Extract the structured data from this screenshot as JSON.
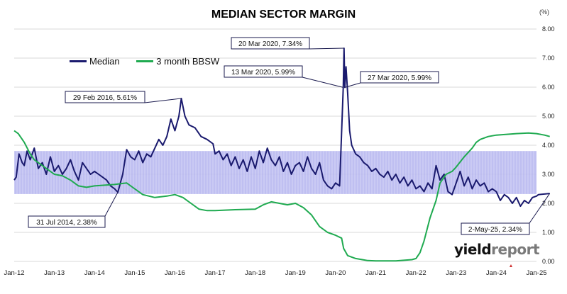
{
  "title": "MEDIAN SECTOR MARGIN",
  "unit_label": "(%)",
  "brand": {
    "part1": "yield",
    "part2": "report"
  },
  "legend": [
    {
      "name": "Median",
      "color": "#1a1a6e"
    },
    {
      "name": "3 month BBSW",
      "color": "#1faa50"
    }
  ],
  "chart_data": {
    "type": "line",
    "title": "MEDIAN SECTOR MARGIN",
    "ylabel": "(%)",
    "xlim": [
      "Jan-12",
      "Jan-25"
    ],
    "ylim": [
      0,
      8
    ],
    "x_ticks": [
      "Jan-12",
      "Jan-13",
      "Jan-14",
      "Jan-15",
      "Jan-16",
      "Jan-17",
      "Jan-18",
      "Jan-19",
      "Jan-20",
      "Jan-21",
      "Jan-22",
      "Jan-23",
      "Jan-24",
      "Jan-25"
    ],
    "y_ticks": [
      "0.00",
      "1.00",
      "2.00",
      "3.00",
      "4.00",
      "5.00",
      "6.00",
      "7.00",
      "8.00"
    ],
    "grid": true,
    "legend_position": "top-left",
    "shaded_band": {
      "y_range": [
        2.32,
        3.8
      ],
      "color": "#b8b8f0"
    },
    "series": [
      {
        "name": "Median",
        "color": "#1a1a6e",
        "points": [
          [
            2012.0,
            2.8
          ],
          [
            2012.05,
            2.9
          ],
          [
            2012.12,
            3.7
          ],
          [
            2012.2,
            3.4
          ],
          [
            2012.25,
            3.3
          ],
          [
            2012.32,
            3.8
          ],
          [
            2012.4,
            3.5
          ],
          [
            2012.5,
            3.9
          ],
          [
            2012.6,
            3.2
          ],
          [
            2012.7,
            3.4
          ],
          [
            2012.8,
            3.0
          ],
          [
            2012.9,
            3.6
          ],
          [
            2013.0,
            3.1
          ],
          [
            2013.1,
            3.3
          ],
          [
            2013.2,
            3.0
          ],
          [
            2013.3,
            3.2
          ],
          [
            2013.4,
            3.5
          ],
          [
            2013.5,
            3.1
          ],
          [
            2013.6,
            2.8
          ],
          [
            2013.7,
            3.4
          ],
          [
            2013.8,
            3.2
          ],
          [
            2013.9,
            3.0
          ],
          [
            2014.0,
            3.1
          ],
          [
            2014.1,
            3.0
          ],
          [
            2014.2,
            2.9
          ],
          [
            2014.3,
            2.8
          ],
          [
            2014.4,
            2.6
          ],
          [
            2014.5,
            2.5
          ],
          [
            2014.58,
            2.38
          ],
          [
            2014.7,
            3.0
          ],
          [
            2014.8,
            3.85
          ],
          [
            2014.9,
            3.6
          ],
          [
            2015.0,
            3.5
          ],
          [
            2015.1,
            3.8
          ],
          [
            2015.2,
            3.4
          ],
          [
            2015.3,
            3.7
          ],
          [
            2015.4,
            3.6
          ],
          [
            2015.5,
            3.9
          ],
          [
            2015.6,
            4.2
          ],
          [
            2015.7,
            4.0
          ],
          [
            2015.8,
            4.3
          ],
          [
            2015.9,
            4.9
          ],
          [
            2016.0,
            4.5
          ],
          [
            2016.1,
            5.0
          ],
          [
            2016.16,
            5.61
          ],
          [
            2016.25,
            5.0
          ],
          [
            2016.35,
            4.7
          ],
          [
            2016.5,
            4.6
          ],
          [
            2016.65,
            4.3
          ],
          [
            2016.8,
            4.2
          ],
          [
            2016.95,
            4.05
          ],
          [
            2017.0,
            3.7
          ],
          [
            2017.1,
            3.8
          ],
          [
            2017.2,
            3.5
          ],
          [
            2017.3,
            3.7
          ],
          [
            2017.4,
            3.3
          ],
          [
            2017.5,
            3.6
          ],
          [
            2017.6,
            3.2
          ],
          [
            2017.7,
            3.5
          ],
          [
            2017.8,
            3.1
          ],
          [
            2017.9,
            3.6
          ],
          [
            2018.0,
            3.2
          ],
          [
            2018.1,
            3.8
          ],
          [
            2018.2,
            3.4
          ],
          [
            2018.3,
            3.9
          ],
          [
            2018.4,
            3.5
          ],
          [
            2018.5,
            3.3
          ],
          [
            2018.6,
            3.6
          ],
          [
            2018.7,
            3.1
          ],
          [
            2018.8,
            3.4
          ],
          [
            2018.9,
            3.0
          ],
          [
            2019.0,
            3.3
          ],
          [
            2019.1,
            3.4
          ],
          [
            2019.2,
            3.1
          ],
          [
            2019.3,
            3.6
          ],
          [
            2019.4,
            3.2
          ],
          [
            2019.5,
            3.0
          ],
          [
            2019.6,
            3.4
          ],
          [
            2019.7,
            2.8
          ],
          [
            2019.8,
            2.6
          ],
          [
            2019.9,
            2.5
          ],
          [
            2020.0,
            2.7
          ],
          [
            2020.1,
            2.6
          ],
          [
            2020.19,
            5.99
          ],
          [
            2020.21,
            7.34
          ],
          [
            2020.23,
            5.99
          ],
          [
            2020.26,
            6.7
          ],
          [
            2020.3,
            5.8
          ],
          [
            2020.35,
            4.5
          ],
          [
            2020.4,
            4.0
          ],
          [
            2020.5,
            3.7
          ],
          [
            2020.6,
            3.6
          ],
          [
            2020.7,
            3.4
          ],
          [
            2020.8,
            3.3
          ],
          [
            2020.9,
            3.1
          ],
          [
            2021.0,
            3.2
          ],
          [
            2021.1,
            3.0
          ],
          [
            2021.2,
            2.9
          ],
          [
            2021.3,
            3.1
          ],
          [
            2021.4,
            2.8
          ],
          [
            2021.5,
            3.0
          ],
          [
            2021.6,
            2.7
          ],
          [
            2021.7,
            2.9
          ],
          [
            2021.8,
            2.6
          ],
          [
            2021.9,
            2.8
          ],
          [
            2022.0,
            2.5
          ],
          [
            2022.1,
            2.6
          ],
          [
            2022.2,
            2.4
          ],
          [
            2022.3,
            2.7
          ],
          [
            2022.4,
            2.5
          ],
          [
            2022.5,
            3.3
          ],
          [
            2022.6,
            2.8
          ],
          [
            2022.7,
            3.0
          ],
          [
            2022.8,
            2.4
          ],
          [
            2022.9,
            2.3
          ],
          [
            2023.0,
            2.7
          ],
          [
            2023.1,
            3.1
          ],
          [
            2023.2,
            2.6
          ],
          [
            2023.3,
            2.9
          ],
          [
            2023.4,
            2.5
          ],
          [
            2023.5,
            2.8
          ],
          [
            2023.6,
            2.6
          ],
          [
            2023.7,
            2.7
          ],
          [
            2023.8,
            2.4
          ],
          [
            2023.9,
            2.5
          ],
          [
            2024.0,
            2.4
          ],
          [
            2024.1,
            2.1
          ],
          [
            2024.2,
            2.3
          ],
          [
            2024.3,
            2.2
          ],
          [
            2024.4,
            2.0
          ],
          [
            2024.5,
            2.2
          ],
          [
            2024.6,
            1.9
          ],
          [
            2024.7,
            2.1
          ],
          [
            2024.8,
            2.0
          ],
          [
            2024.9,
            2.2
          ],
          [
            2025.0,
            2.25
          ],
          [
            2025.05,
            2.3
          ],
          [
            2025.33,
            2.34
          ]
        ]
      },
      {
        "name": "3 month BBSW",
        "color": "#1faa50",
        "points": [
          [
            2012.0,
            4.5
          ],
          [
            2012.1,
            4.4
          ],
          [
            2012.25,
            4.1
          ],
          [
            2012.4,
            3.7
          ],
          [
            2012.5,
            3.5
          ],
          [
            2012.7,
            3.3
          ],
          [
            2012.9,
            3.1
          ],
          [
            2013.0,
            3.0
          ],
          [
            2013.2,
            2.95
          ],
          [
            2013.4,
            2.8
          ],
          [
            2013.6,
            2.6
          ],
          [
            2013.8,
            2.55
          ],
          [
            2014.0,
            2.6
          ],
          [
            2014.5,
            2.65
          ],
          [
            2014.8,
            2.7
          ],
          [
            2015.0,
            2.5
          ],
          [
            2015.2,
            2.3
          ],
          [
            2015.5,
            2.2
          ],
          [
            2015.8,
            2.25
          ],
          [
            2016.0,
            2.3
          ],
          [
            2016.2,
            2.2
          ],
          [
            2016.4,
            2.0
          ],
          [
            2016.6,
            1.8
          ],
          [
            2016.8,
            1.75
          ],
          [
            2017.0,
            1.75
          ],
          [
            2017.5,
            1.78
          ],
          [
            2018.0,
            1.8
          ],
          [
            2018.2,
            1.95
          ],
          [
            2018.4,
            2.05
          ],
          [
            2018.6,
            2.0
          ],
          [
            2018.8,
            1.95
          ],
          [
            2019.0,
            2.0
          ],
          [
            2019.2,
            1.85
          ],
          [
            2019.4,
            1.6
          ],
          [
            2019.6,
            1.2
          ],
          [
            2019.8,
            1.0
          ],
          [
            2020.0,
            0.9
          ],
          [
            2020.15,
            0.8
          ],
          [
            2020.2,
            0.45
          ],
          [
            2020.3,
            0.2
          ],
          [
            2020.5,
            0.1
          ],
          [
            2020.8,
            0.03
          ],
          [
            2021.0,
            0.02
          ],
          [
            2021.5,
            0.02
          ],
          [
            2021.9,
            0.06
          ],
          [
            2022.0,
            0.1
          ],
          [
            2022.1,
            0.3
          ],
          [
            2022.2,
            0.7
          ],
          [
            2022.35,
            1.5
          ],
          [
            2022.5,
            2.1
          ],
          [
            2022.6,
            2.7
          ],
          [
            2022.75,
            3.0
          ],
          [
            2022.9,
            3.1
          ],
          [
            2023.0,
            3.25
          ],
          [
            2023.2,
            3.6
          ],
          [
            2023.4,
            3.9
          ],
          [
            2023.5,
            4.1
          ],
          [
            2023.6,
            4.2
          ],
          [
            2023.8,
            4.3
          ],
          [
            2024.0,
            4.35
          ],
          [
            2024.5,
            4.4
          ],
          [
            2024.8,
            4.42
          ],
          [
            2025.0,
            4.4
          ],
          [
            2025.2,
            4.35
          ],
          [
            2025.33,
            4.3
          ]
        ]
      }
    ],
    "annotations": [
      {
        "text": "29 Feb 2016, 5.61%",
        "x": 2016.16,
        "y": 5.61
      },
      {
        "text": "31 Jul 2014, 2.38%",
        "x": 2014.58,
        "y": 2.38
      },
      {
        "text": "20 Mar 2020, 7.34%",
        "x": 2020.21,
        "y": 7.34
      },
      {
        "text": "13 Mar 2020, 5.99%",
        "x": 2020.19,
        "y": 5.99
      },
      {
        "text": "27 Mar 2020, 5.99%",
        "x": 2020.23,
        "y": 5.99
      },
      {
        "text": "2-May-25, 2.34%",
        "x": 2025.33,
        "y": 2.34
      }
    ]
  }
}
